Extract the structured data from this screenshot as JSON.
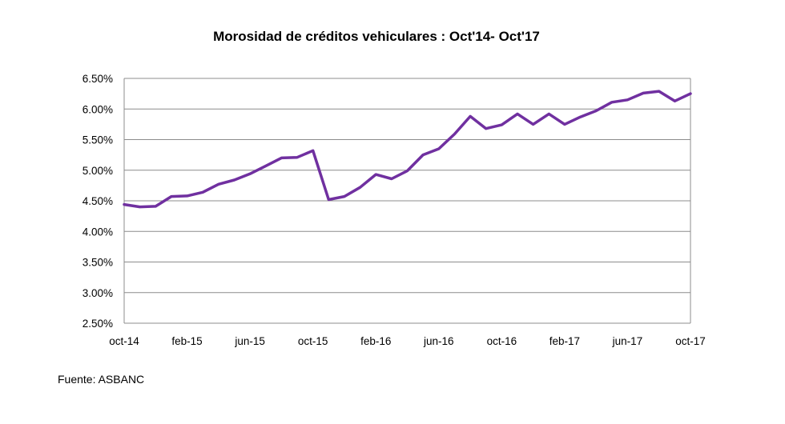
{
  "chart_data": {
    "type": "line",
    "title": "Morosidad de créditos vehiculares : Oct'14- Oct'17",
    "xlabel": "",
    "ylabel": "",
    "x_tick_labels": [
      "oct-14",
      "feb-15",
      "jun-15",
      "oct-15",
      "feb-16",
      "jun-16",
      "oct-16",
      "feb-17",
      "jun-17",
      "oct-17"
    ],
    "y_tick_labels": [
      "2.50%",
      "3.00%",
      "3.50%",
      "4.00%",
      "4.50%",
      "5.00%",
      "5.50%",
      "6.00%",
      "6.50%"
    ],
    "ylim": [
      2.5,
      6.5
    ],
    "y_unit": "%",
    "grid": "horizontal",
    "legend": "none",
    "series": [
      {
        "color": "#7030a0",
        "x": [
          "oct-14",
          "nov-14",
          "dic-14",
          "ene-15",
          "feb-15",
          "mar-15",
          "abr-15",
          "may-15",
          "jun-15",
          "jul-15",
          "ago-15",
          "sep-15",
          "oct-15",
          "nov-15",
          "dic-15",
          "ene-16",
          "feb-16",
          "mar-16",
          "abr-16",
          "may-16",
          "jun-16",
          "jul-16",
          "ago-16",
          "sep-16",
          "oct-16",
          "nov-16",
          "dic-16",
          "ene-17",
          "feb-17",
          "mar-17",
          "abr-17",
          "may-17",
          "jun-17",
          "jul-17",
          "ago-17",
          "sep-17",
          "oct-17"
        ],
        "values": [
          4.44,
          4.4,
          4.41,
          4.57,
          4.58,
          4.64,
          4.77,
          4.84,
          4.94,
          5.07,
          5.2,
          5.21,
          5.32,
          4.52,
          4.57,
          4.72,
          4.93,
          4.86,
          4.99,
          5.25,
          5.35,
          5.59,
          5.88,
          5.68,
          5.74,
          5.92,
          5.75,
          5.92,
          5.75,
          5.87,
          5.97,
          6.11,
          6.15,
          6.26,
          6.29,
          6.13,
          6.25
        ]
      }
    ]
  },
  "source": "Fuente: ASBANC"
}
